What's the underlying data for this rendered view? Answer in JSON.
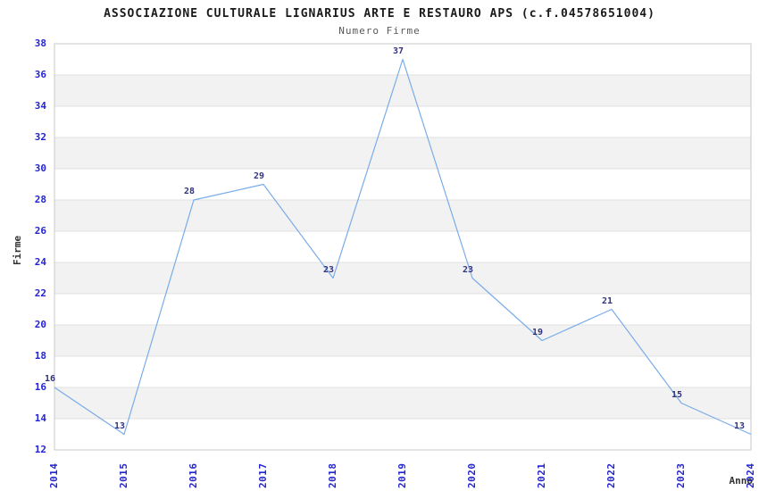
{
  "chart_data": {
    "type": "line",
    "title": "ASSOCIAZIONE CULTURALE LIGNARIUS ARTE E RESTAURO APS (c.f.04578651004)",
    "subtitle": "Numero Firme",
    "xlabel": "Anno",
    "ylabel": "Firme",
    "categories": [
      2014,
      2015,
      2016,
      2017,
      2018,
      2019,
      2020,
      2021,
      2022,
      2023,
      2024
    ],
    "values": [
      16,
      13,
      28,
      29,
      23,
      37,
      23,
      19,
      21,
      15,
      13
    ],
    "ylim": [
      12,
      38
    ],
    "ytick_step": 2,
    "yticks": [
      12,
      14,
      16,
      18,
      20,
      22,
      24,
      26,
      28,
      30,
      32,
      34,
      36,
      38
    ],
    "grid": "horizontal-bands-alternating",
    "legend_position": "none",
    "data_labels_shown": true,
    "colors": {
      "line": "#79ace8",
      "tick_label": "#2424d1",
      "data_label": "#32327d",
      "band": "#f2f2f2",
      "gridline": "#e0e0e0",
      "plot_border": "#c8c8c8",
      "title": "#1a1a1a",
      "subtitle": "#595959",
      "axis_title": "#333333"
    }
  }
}
